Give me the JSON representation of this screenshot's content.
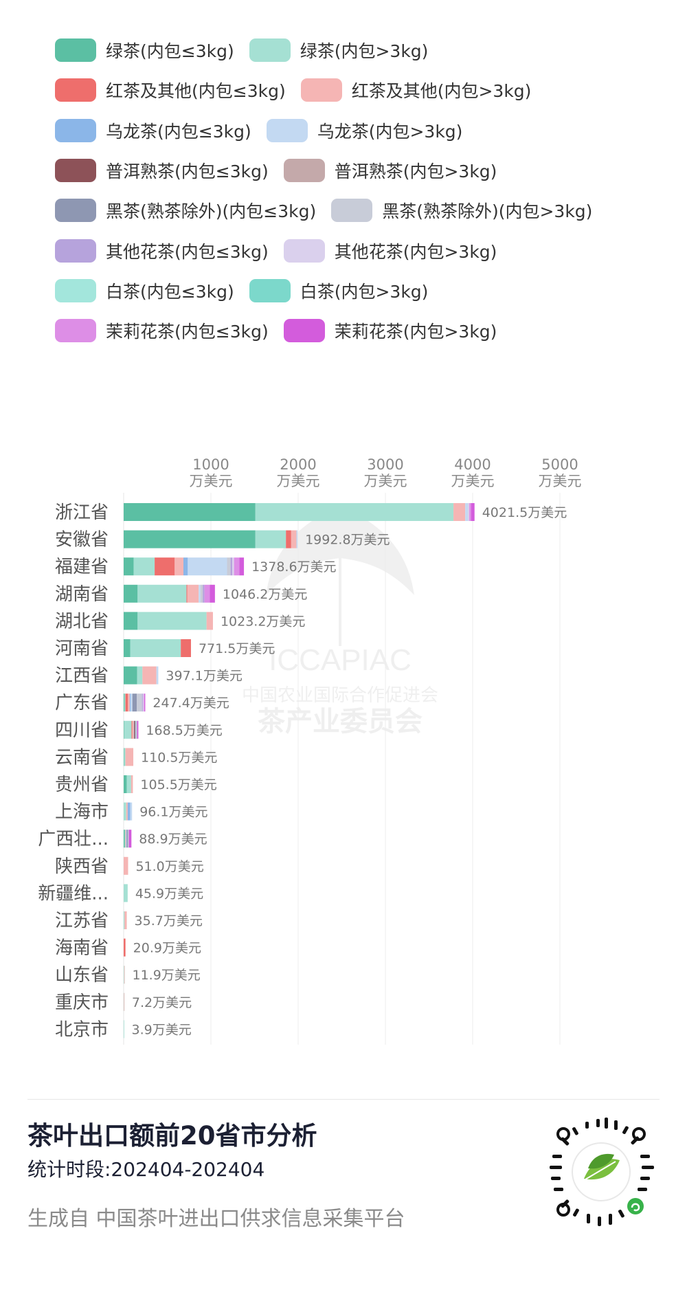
{
  "legend": [
    [
      {
        "label": "绿茶(内包≤3kg)",
        "color": "#5bbfa3"
      },
      {
        "label": "绿茶(内包>3kg)",
        "color": "#a5e0d3"
      }
    ],
    [
      {
        "label": "红茶及其他(内包≤3kg)",
        "color": "#ee6e6c"
      },
      {
        "label": "红茶及其他(内包>3kg)",
        "color": "#f5b5b4"
      }
    ],
    [
      {
        "label": "乌龙茶(内包≤3kg)",
        "color": "#8bb6e8"
      },
      {
        "label": "乌龙茶(内包>3kg)",
        "color": "#c3d9f2"
      }
    ],
    [
      {
        "label": "普洱熟茶(内包≤3kg)",
        "color": "#8d5258"
      },
      {
        "label": "普洱熟茶(内包>3kg)",
        "color": "#c4a9aa"
      }
    ],
    [
      {
        "label": "黑茶(熟茶除外)(内包≤3kg)",
        "color": "#8e97b2"
      },
      {
        "label": "黑茶(熟茶除外)(内包>3kg)",
        "color": "#c8ccd8"
      }
    ],
    [
      {
        "label": "其他花茶(内包≤3kg)",
        "color": "#b6a3dc"
      },
      {
        "label": "其他花茶(内包>3kg)",
        "color": "#dad0ed"
      }
    ],
    [
      {
        "label": "白茶(内包≤3kg)",
        "color": "#a3e6dc"
      },
      {
        "label": "白茶(内包>3kg)",
        "color": "#7cd8cb"
      }
    ],
    [
      {
        "label": "茉莉花茶(内包≤3kg)",
        "color": "#dd8ee6"
      },
      {
        "label": "茉莉花茶(内包>3kg)",
        "color": "#d35cdc"
      }
    ]
  ],
  "chart_data": {
    "type": "bar",
    "orientation": "horizontal",
    "stacked": true,
    "xlim": [
      0,
      5000
    ],
    "x_ticks": [
      1000,
      2000,
      3000,
      4000,
      5000
    ],
    "x_unit": "万美元",
    "value_suffix": "万美元",
    "grid": true,
    "legend_position": "top",
    "watermark": {
      "line1": "ICCAPIAC",
      "line2": "中国农业国际合作促进会",
      "line3": "茶产业委员会"
    },
    "categories": [
      "浙江省",
      "安徽省",
      "福建省",
      "湖南省",
      "湖北省",
      "河南省",
      "江西省",
      "广东省",
      "四川省",
      "云南省",
      "贵州省",
      "上海市",
      "广西壮...",
      "陕西省",
      "新疆维...",
      "江苏省",
      "海南省",
      "山东省",
      "重庆市",
      "北京市"
    ],
    "totals": [
      "4021.5",
      "1992.8",
      "1378.6",
      "1046.2",
      "1023.2",
      "771.5",
      "397.1",
      "247.4",
      "168.5",
      "110.5",
      "105.5",
      "96.1",
      "88.9",
      "51.0",
      "45.9",
      "35.7",
      "20.9",
      "11.9",
      "7.2",
      "3.9"
    ],
    "series": [
      {
        "name": "绿茶(内包≤3kg)",
        "values": [
          1510,
          1510,
          115,
          160,
          160,
          75,
          155,
          10,
          5,
          5,
          35,
          0,
          12,
          0,
          0,
          0,
          0,
          0,
          0,
          0
        ],
        "color": "#5bbfa3"
      },
      {
        "name": "绿茶(内包>3kg)",
        "values": [
          2270,
          350,
          240,
          560,
          790,
          580,
          60,
          10,
          85,
          15,
          50,
          30,
          8,
          0,
          45.9,
          10,
          0,
          6,
          3,
          3.9
        ],
        "color": "#a5e0d3"
      },
      {
        "name": "红茶及其他(内包≤3kg)",
        "values": [
          0,
          60,
          230,
          10,
          0,
          116.5,
          0,
          30,
          10,
          0,
          0,
          0,
          0,
          0,
          0,
          0,
          20.9,
          0,
          0,
          0
        ],
        "color": "#ee6e6c"
      },
      {
        "name": "红茶及其他(内包>3kg)",
        "values": [
          135,
          60,
          100,
          130,
          73.2,
          0,
          160,
          20,
          15,
          90.5,
          20.5,
          16.1,
          8.9,
          51,
          0,
          25.7,
          0,
          5.9,
          4.2,
          0
        ],
        "color": "#f5b5b4"
      },
      {
        "name": "乌龙茶(内包≤3kg)",
        "values": [
          0,
          0,
          50,
          0,
          0,
          0,
          0,
          10,
          0,
          0,
          0,
          30,
          8,
          0,
          0,
          0,
          0,
          0,
          0,
          0
        ],
        "color": "#8bb6e8"
      },
      {
        "name": "乌龙茶(内包>3kg)",
        "values": [
          30,
          12.8,
          450,
          20,
          0,
          0,
          22.1,
          20,
          3.5,
          0,
          0,
          20,
          0,
          0,
          0,
          0,
          0,
          0,
          0,
          0
        ],
        "color": "#c3d9f2"
      },
      {
        "name": "普洱熟茶(内包≤3kg)",
        "values": [
          0,
          0,
          0,
          0,
          0,
          0,
          0,
          0,
          10,
          0,
          0,
          0,
          0,
          0,
          0,
          0,
          0,
          0,
          0,
          0
        ],
        "color": "#8d5258"
      },
      {
        "name": "普洱熟茶(内包>3kg)",
        "values": [
          0,
          0,
          0,
          0,
          0,
          0,
          0,
          0,
          0,
          0,
          0,
          0,
          0,
          0,
          0,
          0,
          0,
          0,
          0,
          0
        ],
        "color": "#c4a9aa"
      },
      {
        "name": "黑茶(熟茶除外)(内包≤3kg)",
        "values": [
          0,
          0,
          0,
          0,
          0,
          0,
          0,
          50,
          10,
          0,
          0,
          0,
          12,
          0,
          0,
          0,
          0,
          0,
          0,
          0
        ],
        "color": "#8e97b2"
      },
      {
        "name": "黑茶(熟茶除外)(内包>3kg)",
        "values": [
          0,
          0,
          40,
          26.2,
          0,
          0,
          0,
          60,
          15,
          0,
          0,
          0,
          10,
          0,
          0,
          0,
          0,
          0,
          0,
          0
        ],
        "color": "#c8ccd8"
      },
      {
        "name": "其他花茶(内包≤3kg)",
        "values": [
          0,
          0,
          20,
          20,
          0,
          0,
          0,
          10,
          0,
          0,
          0,
          0,
          0,
          0,
          0,
          0,
          0,
          0,
          0,
          0
        ],
        "color": "#b6a3dc"
      },
      {
        "name": "其他花茶(内包>3kg)",
        "values": [
          16.5,
          0,
          20,
          0,
          0,
          0,
          0,
          10,
          0,
          0,
          0,
          0,
          0,
          0,
          0,
          0,
          0,
          0,
          0,
          0
        ],
        "color": "#dad0ed"
      },
      {
        "name": "白茶(内包≤3kg)",
        "values": [
          0,
          0,
          0,
          0,
          0,
          0,
          0,
          0,
          0,
          0,
          0,
          0,
          0,
          0,
          0,
          0,
          0,
          0,
          0,
          0
        ],
        "color": "#a3e6dc"
      },
      {
        "name": "白茶(内包>3kg)",
        "values": [
          0,
          0,
          0,
          0,
          0,
          0,
          0,
          0,
          0,
          0,
          0,
          0,
          0,
          0,
          0,
          0,
          0,
          0,
          0,
          0
        ],
        "color": "#7cd8cb"
      },
      {
        "name": "茉莉花茶(内包≤3kg)",
        "values": [
          20,
          0,
          60,
          60,
          0,
          0,
          0,
          7.4,
          0,
          0,
          0,
          0,
          0,
          0,
          0,
          0,
          0,
          0,
          0,
          0
        ],
        "color": "#dd8ee6"
      },
      {
        "name": "茉莉花茶(内包>3kg)",
        "values": [
          40,
          0,
          53.6,
          60,
          0,
          0,
          0,
          10,
          15,
          0,
          0,
          0,
          30,
          0,
          0,
          0,
          0,
          0,
          0,
          0
        ],
        "color": "#d35cdc"
      }
    ]
  },
  "footer": {
    "title": "茶叶出口额前20省市分析",
    "period": "统计时段:202404-202404",
    "source": "生成自 中国茶叶进出口供求信息采集平台"
  }
}
